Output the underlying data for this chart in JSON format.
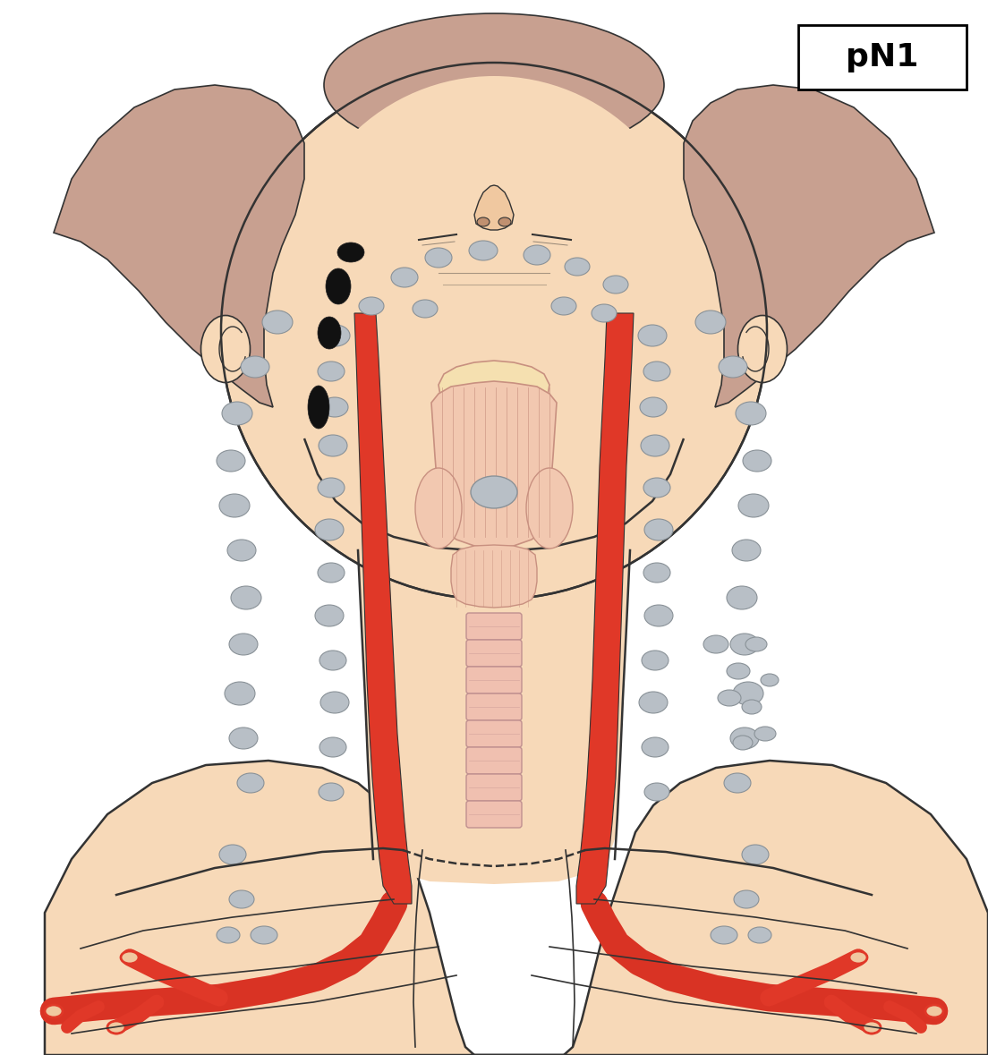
{
  "title": "pN1",
  "bg": "#ffffff",
  "skin": "#f7d9b8",
  "skin_mid": "#f0c8a0",
  "skin_dark": "#d4a882",
  "hair": "#c8a090",
  "hair_outline": "#555555",
  "outline": "#333333",
  "gray_node": "#b8bfc6",
  "gray_node_out": "#8a9298",
  "black_node": "#111111",
  "red_vessel": "#e03828",
  "red_dark": "#c02018",
  "larynx_fill": "#f2c8b0",
  "larynx_out": "#c89080",
  "larynx_stripe": "#d4a090",
  "trachea_fill": "#f0c0b0",
  "trachea_out": "#c09090",
  "spine_fill": "#f5d8c8",
  "spine_out": "#d0a898",
  "figsize": [
    11.04,
    11.79
  ],
  "dpi": 100
}
